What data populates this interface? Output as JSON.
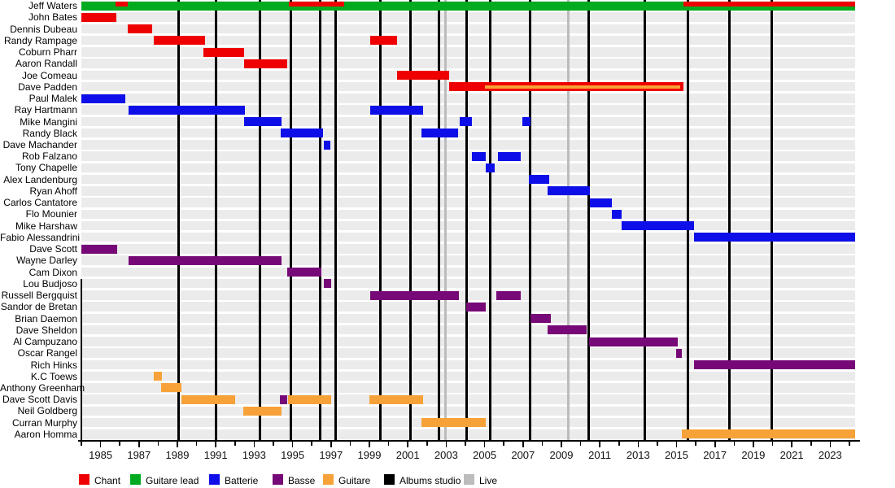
{
  "chart_data": {
    "type": "timeline",
    "description_visible_text_only": true,
    "axis": {
      "min": 1984.0,
      "max": 2024.3,
      "year_labels": [
        "1985",
        "1987",
        "1989",
        "1991",
        "1993",
        "1995",
        "1997",
        "1999",
        "2001",
        "2003",
        "2005",
        "2007",
        "2009",
        "2011",
        "2013",
        "2015",
        "2017",
        "2019",
        "2021",
        "2023"
      ],
      "label_start_year": 1985,
      "label_step": 2,
      "minor_tick_every": 1
    },
    "colors": {
      "chant": "#ee0000",
      "guitare_lead": "#00ab1f",
      "batterie": "#0e0ee8",
      "basse": "#770877",
      "guitare": "#f7a238",
      "albums_studio": "#000000",
      "live": "#bcbcbc",
      "row_stripe": "#ebebeb"
    },
    "legend": [
      {
        "key": "chant",
        "label": "Chant"
      },
      {
        "key": "guitare_lead",
        "label": "Guitare lead"
      },
      {
        "key": "batterie",
        "label": "Batterie"
      },
      {
        "key": "basse",
        "label": "Basse"
      },
      {
        "key": "guitare",
        "label": "Guitare"
      },
      {
        "key": "albums_studio",
        "label": "Albums studio"
      },
      {
        "key": "live",
        "label": "Live"
      }
    ],
    "album_lines": {
      "studio": [
        1989.08,
        1990.99,
        1993.32,
        1994.93,
        1996.42,
        1997.22,
        1999.59,
        2001.12,
        2002.64,
        2004.08,
        2005.31,
        2007.35,
        2010.44,
        2013.36,
        2015.61,
        2017.77,
        2019.97
      ],
      "live": [
        2002.98,
        2009.34
      ]
    },
    "rows": [
      {
        "name": "Jeff Waters",
        "bars": [
          {
            "role": "guitare_lead",
            "start": 1984.0,
            "end": 2024.3
          },
          {
            "role": "chant",
            "start": 1985.78,
            "end": 1986.42,
            "variant": "stripe"
          },
          {
            "role": "chant",
            "start": 1994.81,
            "end": 1997.69,
            "variant": "stripe"
          },
          {
            "role": "chant",
            "start": 2015.36,
            "end": 2024.3,
            "variant": "stripe"
          }
        ]
      },
      {
        "name": "John Bates",
        "bars": [
          {
            "role": "chant",
            "start": 1984.0,
            "end": 1985.82
          }
        ]
      },
      {
        "name": "Dennis Dubeau",
        "bars": [
          {
            "role": "chant",
            "start": 1986.42,
            "end": 1987.69
          }
        ]
      },
      {
        "name": "Randy Rampage",
        "bars": [
          {
            "role": "chant",
            "start": 1987.77,
            "end": 1990.44
          },
          {
            "role": "chant",
            "start": 1999.04,
            "end": 2000.44
          }
        ]
      },
      {
        "name": "Coburn Pharr",
        "bars": [
          {
            "role": "chant",
            "start": 1990.36,
            "end": 1992.47
          }
        ]
      },
      {
        "name": "Aaron Randall",
        "bars": [
          {
            "role": "chant",
            "start": 1992.47,
            "end": 1994.72
          }
        ]
      },
      {
        "name": "Joe Comeau",
        "bars": [
          {
            "role": "chant",
            "start": 2000.44,
            "end": 2003.15
          }
        ]
      },
      {
        "name": "Dave Padden",
        "bars": [
          {
            "role": "chant",
            "start": 2003.15,
            "end": 2015.36
          },
          {
            "role": "guitare",
            "start": 2005.01,
            "end": 2015.2,
            "variant": "inset"
          }
        ]
      },
      {
        "name": "Paul Malek",
        "bars": [
          {
            "role": "batterie",
            "start": 1984.0,
            "end": 1986.29
          }
        ]
      },
      {
        "name": "Ray Hartmann",
        "bars": [
          {
            "role": "batterie",
            "start": 1986.46,
            "end": 1992.52
          },
          {
            "role": "batterie",
            "start": 1999.04,
            "end": 2001.8
          }
        ]
      },
      {
        "name": "Mike Mangini",
        "bars": [
          {
            "role": "batterie",
            "start": 1992.47,
            "end": 1994.42
          },
          {
            "role": "batterie",
            "start": 2003.7,
            "end": 2004.34
          },
          {
            "role": "batterie",
            "start": 2006.97,
            "end": 2007.39
          }
        ]
      },
      {
        "name": "Randy Black",
        "bars": [
          {
            "role": "batterie",
            "start": 1994.38,
            "end": 1996.58
          },
          {
            "role": "batterie",
            "start": 2001.71,
            "end": 2003.62
          }
        ]
      },
      {
        "name": "Dave Machander",
        "bars": [
          {
            "role": "batterie",
            "start": 1996.63,
            "end": 1996.97
          }
        ]
      },
      {
        "name": "Rob Falzano",
        "bars": [
          {
            "role": "batterie",
            "start": 2004.34,
            "end": 2005.06
          },
          {
            "role": "batterie",
            "start": 2005.69,
            "end": 2006.88
          }
        ]
      },
      {
        "name": "Tony Chapelle",
        "bars": [
          {
            "role": "batterie",
            "start": 2005.06,
            "end": 2005.52
          }
        ]
      },
      {
        "name": "Alex Landenburg",
        "bars": [
          {
            "role": "batterie",
            "start": 2007.31,
            "end": 2008.36
          }
        ]
      },
      {
        "name": "Ryan Ahoff",
        "bars": [
          {
            "role": "batterie",
            "start": 2008.28,
            "end": 2010.48
          }
        ]
      },
      {
        "name": "Carlos Cantatore",
        "bars": [
          {
            "role": "batterie",
            "start": 2010.48,
            "end": 2011.63
          }
        ]
      },
      {
        "name": "Flo Mounier",
        "bars": [
          {
            "role": "batterie",
            "start": 2011.63,
            "end": 2012.13
          }
        ]
      },
      {
        "name": "Mike Harshaw",
        "bars": [
          {
            "role": "batterie",
            "start": 2012.13,
            "end": 2015.91
          }
        ]
      },
      {
        "name": "Fabio Alessandrini",
        "bars": [
          {
            "role": "batterie",
            "start": 2015.91,
            "end": 2024.3
          }
        ]
      },
      {
        "name": "Dave Scott",
        "bars": [
          {
            "role": "basse",
            "start": 1984.0,
            "end": 1985.86
          }
        ]
      },
      {
        "name": "Wayne Darley",
        "bars": [
          {
            "role": "basse",
            "start": 1986.46,
            "end": 1994.42
          }
        ]
      },
      {
        "name": "Cam Dixon",
        "bars": [
          {
            "role": "basse",
            "start": 1994.72,
            "end": 1996.5
          }
        ]
      },
      {
        "name": "Lou Budjoso",
        "bars": [
          {
            "role": "basse",
            "start": 1996.63,
            "end": 1997.01
          }
        ]
      },
      {
        "name": "Russell Bergquist",
        "bars": [
          {
            "role": "basse",
            "start": 1999.04,
            "end": 2003.66
          },
          {
            "role": "basse",
            "start": 2005.61,
            "end": 2006.88
          }
        ]
      },
      {
        "name": "Sandor de Bretan",
        "bars": [
          {
            "role": "basse",
            "start": 2004.04,
            "end": 2005.06
          }
        ]
      },
      {
        "name": "Brian Daemon",
        "bars": [
          {
            "role": "basse",
            "start": 2007.39,
            "end": 2008.45
          }
        ]
      },
      {
        "name": "Dave Sheldon",
        "bars": [
          {
            "role": "basse",
            "start": 2008.28,
            "end": 2010.31
          }
        ]
      },
      {
        "name": "Al Campuzano",
        "bars": [
          {
            "role": "basse",
            "start": 2010.44,
            "end": 2015.06
          }
        ]
      },
      {
        "name": "Oscar Rangel",
        "bars": [
          {
            "role": "basse",
            "start": 2014.97,
            "end": 2015.27
          }
        ]
      },
      {
        "name": "Rich Hinks",
        "bars": [
          {
            "role": "basse",
            "start": 2015.91,
            "end": 2024.3
          }
        ]
      },
      {
        "name": "K.C Toews",
        "bars": [
          {
            "role": "guitare",
            "start": 1987.77,
            "end": 1988.19
          }
        ]
      },
      {
        "name": "Anthony Greenham",
        "bars": [
          {
            "role": "guitare",
            "start": 1988.15,
            "end": 1989.21
          }
        ]
      },
      {
        "name": "Dave Scott Davis",
        "bars": [
          {
            "role": "guitare",
            "start": 1989.21,
            "end": 1992.01
          },
          {
            "role": "basse",
            "start": 1994.34,
            "end": 1994.72
          },
          {
            "role": "guitare",
            "start": 1994.76,
            "end": 1997.01
          },
          {
            "role": "guitare",
            "start": 1999.0,
            "end": 2001.8
          }
        ]
      },
      {
        "name": "Neil Goldberg",
        "bars": [
          {
            "role": "guitare",
            "start": 1992.43,
            "end": 1994.42
          }
        ]
      },
      {
        "name": "Curran Murphy",
        "bars": [
          {
            "role": "guitare",
            "start": 2001.71,
            "end": 2005.06
          }
        ]
      },
      {
        "name": "Aaron Homma",
        "bars": [
          {
            "role": "guitare",
            "start": 2015.27,
            "end": 2024.3
          }
        ]
      }
    ]
  }
}
